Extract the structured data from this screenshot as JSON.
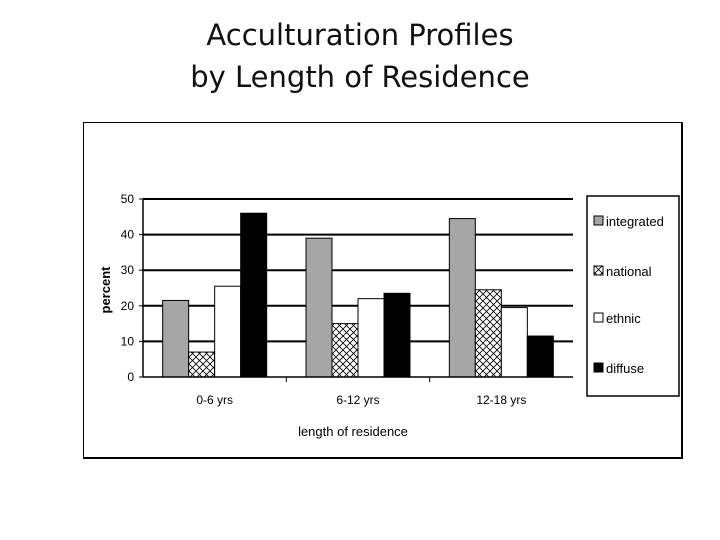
{
  "page": {
    "title_line1": "Acculturation Profiles",
    "title_line2": "by Length of Residence"
  },
  "chart_data": {
    "type": "bar",
    "title": "Acculturation Profiles by Length of Residence",
    "xlabel": "length of residence",
    "ylabel": "percent",
    "ylim": [
      0,
      50
    ],
    "yticks": [
      0,
      10,
      20,
      30,
      40,
      50
    ],
    "grid": true,
    "legend_position": "right",
    "categories": [
      "0-6 yrs",
      "6-12 yrs",
      "12-18 yrs"
    ],
    "series": [
      {
        "name": "integrated",
        "values": [
          21.5,
          39,
          44.5
        ],
        "fill": "#a6a6a6",
        "pattern": "solid"
      },
      {
        "name": "national",
        "values": [
          7,
          15,
          24.5
        ],
        "fill": "#ffffff",
        "pattern": "crosshatch"
      },
      {
        "name": "ethnic",
        "values": [
          25.5,
          22,
          19.5
        ],
        "fill": "#ffffff",
        "pattern": "solid"
      },
      {
        "name": "diffuse",
        "values": [
          46,
          23.5,
          11.5
        ],
        "fill": "#000000",
        "pattern": "solid"
      }
    ]
  }
}
